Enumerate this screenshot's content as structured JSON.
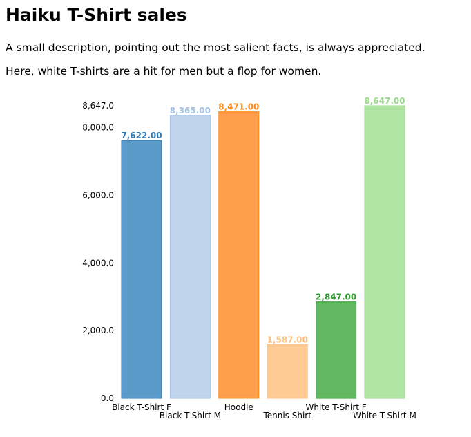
{
  "page": {
    "title": "Haiku T-Shirt sales",
    "descriptions": [
      "A small description, pointing out the most salient facts, is always appreciated.",
      "Here, white T-shirts are a hit for men but a flop for women."
    ]
  },
  "chart_data": {
    "type": "bar",
    "title": "",
    "xlabel": "",
    "ylabel": "",
    "categories": [
      "Black T-Shirt F",
      "Black T-Shirt M",
      "Hoodie",
      "Tennis Shirt",
      "White T-Shirt F",
      "White T-Shirt M"
    ],
    "values": [
      7622,
      8365,
      8471,
      1587,
      2847,
      8647
    ],
    "value_labels": [
      "7,622.00",
      "8,365.00",
      "8,471.00",
      "1,587.00",
      "2,847.00",
      "8,647.00"
    ],
    "y_ticks": [
      0,
      2000,
      4000,
      6000,
      8000,
      8647
    ],
    "y_tick_labels": [
      "0.0",
      "2,000.0",
      "4,000.0",
      "6,000.0",
      "8,000.0",
      "8,647.0"
    ],
    "ylim": [
      0,
      8647
    ],
    "grid": false,
    "colors": {
      "bars": [
        "#5a9bc9",
        "#c0d4ec",
        "#fd9e4a",
        "#fecb95",
        "#62b861",
        "#b0e5a4"
      ],
      "labels": [
        "#2e7ab8",
        "#a6c3e5",
        "#fd8c20",
        "#fdc081",
        "#2f9a2f",
        "#9ad98c"
      ]
    }
  }
}
